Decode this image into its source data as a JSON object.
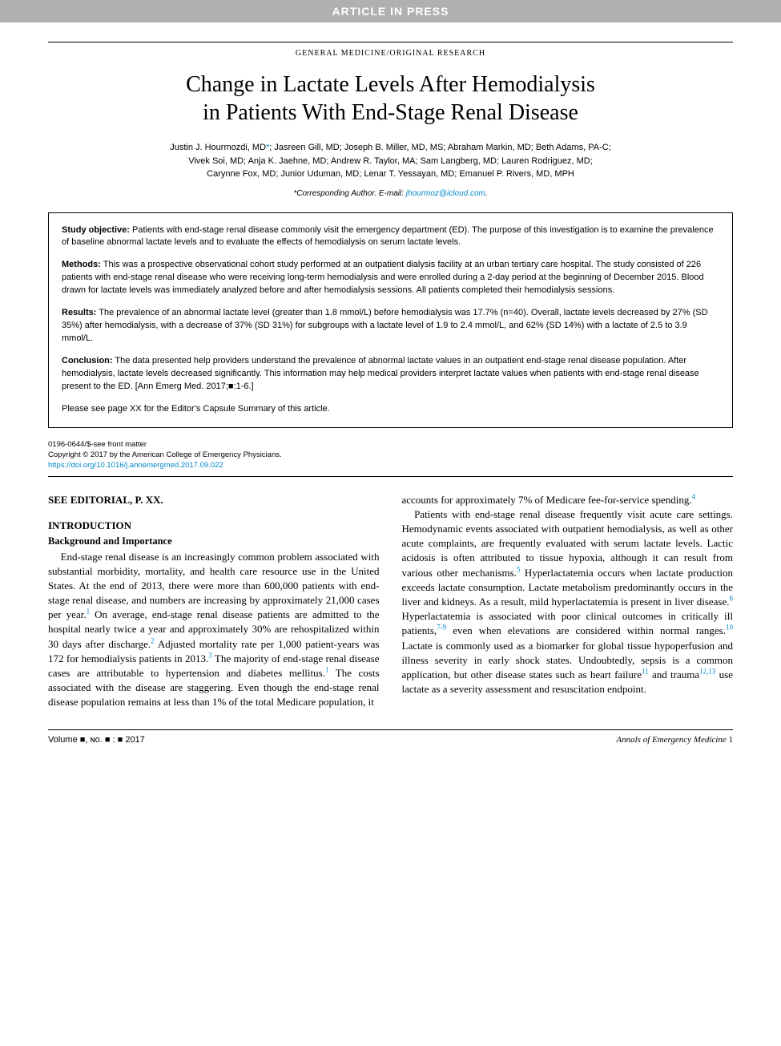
{
  "banner": "ARTICLE IN PRESS",
  "section_header": "GENERAL MEDICINE/ORIGINAL RESEARCH",
  "title_line1": "Change in Lactate Levels After Hemodialysis",
  "title_line2": "in Patients With End-Stage Renal Disease",
  "authors_line1": "Justin J. Hourmozdi, MD",
  "authors_asterisk": "*",
  "authors_line1b": "; Jasreen Gill, MD; Joseph B. Miller, MD, MS; Abraham Markin, MD; Beth Adams, PA-C;",
  "authors_line2": "Vivek Soi, MD; Anja K. Jaehne, MD; Andrew R. Taylor, MA; Sam Langberg, MD; Lauren Rodriguez, MD;",
  "authors_line3": "Carynne Fox, MD; Junior Uduman, MD; Lenar T. Yessayan, MD; Emanuel P. Rivers, MD, MPH",
  "corresponding_label": "*Corresponding Author. E-mail: ",
  "corresponding_email": "jhourmoz@icloud.com",
  "corresponding_period": ".",
  "abstract": {
    "objective_label": "Study objective:",
    "objective_text": " Patients with end-stage renal disease commonly visit the emergency department (ED). The purpose of this investigation is to examine the prevalence of baseline abnormal lactate levels and to evaluate the effects of hemodialysis on serum lactate levels.",
    "methods_label": "Methods:",
    "methods_text": " This was a prospective observational cohort study performed at an outpatient dialysis facility at an urban tertiary care hospital. The study consisted of 226 patients with end-stage renal disease who were receiving long-term hemodialysis and were enrolled during a 2-day period at the beginning of December 2015. Blood drawn for lactate levels was immediately analyzed before and after hemodialysis sessions. All patients completed their hemodialysis sessions.",
    "results_label": "Results:",
    "results_text": " The prevalence of an abnormal lactate level (greater than 1.8 mmol/L) before hemodialysis was 17.7% (n=40). Overall, lactate levels decreased by 27% (SD 35%) after hemodialysis, with a decrease of 37% (SD 31%) for subgroups with a lactate level of 1.9 to 2.4 mmol/L, and 62% (SD 14%) with a lactate of 2.5 to 3.9 mmol/L.",
    "conclusion_label": "Conclusion:",
    "conclusion_text": " The data presented help providers understand the prevalence of abnormal lactate values in an outpatient end-stage renal disease population. After hemodialysis, lactate levels decreased significantly. This information may help medical providers interpret lactate values when patients with end-stage renal disease present to the ED. [Ann Emerg Med. 2017;■:1-6.]",
    "capsule": "Please see page XX for the Editor's Capsule Summary of this article."
  },
  "front_matter": {
    "line1": "0196-0644/$-see front matter",
    "line2": "Copyright © 2017 by the American College of Emergency Physicians.",
    "doi": "https://doi.org/10.1016/j.annemergmed.2017.09.022"
  },
  "see_editorial": "SEE EDITORIAL, P. XX.",
  "intro_heading": "INTRODUCTION",
  "sub_heading": "Background and Importance",
  "col1_p1a": "End-stage renal disease is an increasingly common problem associated with substantial morbidity, mortality, and health care resource use in the United States. At the end of 2013, there were more than 600,000 patients with end-stage renal disease, and numbers are increasing by approximately 21,000 cases per year.",
  "col1_p1b": " On average, end-stage renal disease patients are admitted to the hospital nearly twice a year and approximately 30% are rehospitalized within 30 days after discharge.",
  "col1_p1c": " Adjusted mortality rate per 1,000 patient-years was 172 for hemodialysis patients in 2013.",
  "col1_p1d": " The majority of end-stage renal disease cases are attributable to hypertension and diabetes mellitus.",
  "col1_p1e": " The costs associated with the disease are staggering. Even though the end-stage renal disease population remains at less than 1% of the total Medicare population, it",
  "col2_p1a": "accounts for approximately 7% of Medicare fee-for-service spending.",
  "col2_p2a": "Patients with end-stage renal disease frequently visit acute care settings. Hemodynamic events associated with outpatient hemodialysis, as well as other acute complaints, are frequently evaluated with serum lactate levels. Lactic acidosis is often attributed to tissue hypoxia, although it can result from various other mechanisms.",
  "col2_p2b": " Hyperlactatemia occurs when lactate production exceeds lactate consumption. Lactate metabolism predominantly occurs in the liver and kidneys. As a result, mild hyperlactatemia is present in liver disease.",
  "col2_p2c": " Hyperlactatemia is associated with poor clinical outcomes in critically ill patients,",
  "col2_p2d": " even when elevations are considered within normal ranges.",
  "col2_p2e": " Lactate is commonly used as a biomarker for global tissue hypoperfusion and illness severity in early shock states. Undoubtedly, sepsis is a common application, but other disease states such as heart failure",
  "col2_p2f": " and trauma",
  "col2_p2g": " use lactate as a severity assessment and resuscitation endpoint.",
  "refs": {
    "r1": "1",
    "r2": "2",
    "r3": "3",
    "r4": "4",
    "r5": "5",
    "r6": "6",
    "r7_9": "7-9",
    "r10": "10",
    "r11": "11",
    "r12_13": "12,13"
  },
  "footer": {
    "left": "Volume ■, ɴᴏ. ■ : ■ 2017",
    "right_journal": "Annals of Emergency Medicine",
    "right_page": " 1"
  },
  "colors": {
    "banner_bg": "#b0b0b0",
    "banner_text": "#ffffff",
    "link": "#0088cc",
    "text": "#000000",
    "background": "#ffffff"
  }
}
